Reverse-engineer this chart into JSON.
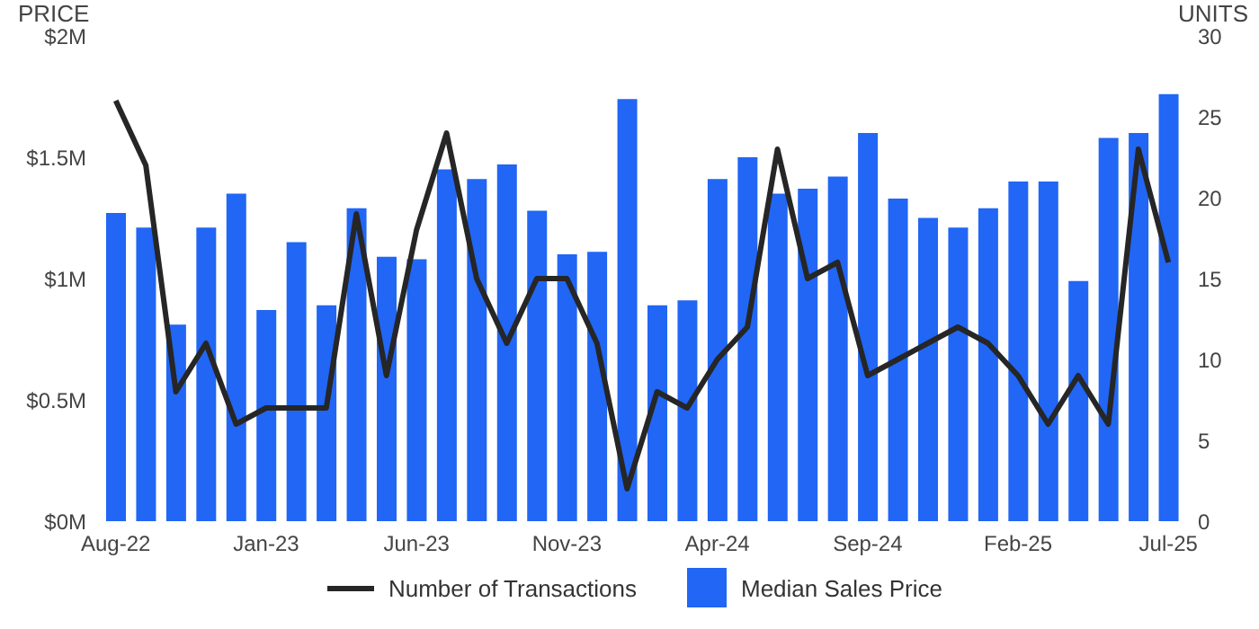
{
  "chart_data": {
    "type": "bar",
    "ylabel": "PRICE",
    "y2label": "UNITS",
    "categories": [
      "Aug-22",
      null,
      null,
      null,
      null,
      "Jan-23",
      null,
      null,
      null,
      null,
      "Jun-23",
      null,
      null,
      null,
      null,
      "Nov-23",
      null,
      null,
      null,
      null,
      "Apr-24",
      null,
      null,
      null,
      null,
      "Sep-24",
      null,
      null,
      null,
      null,
      "Feb-25",
      null,
      null,
      null,
      null,
      "Jul-25"
    ],
    "series": [
      {
        "name": "Number of Transactions",
        "type": "line",
        "axis": "y2",
        "color": "#262626",
        "values": [
          26,
          22,
          8,
          11,
          6,
          7,
          7,
          7,
          19,
          9,
          18,
          24,
          15,
          11,
          15,
          15,
          11,
          2,
          8,
          7,
          10,
          12,
          23,
          15,
          16,
          9,
          10,
          11,
          12,
          11,
          9,
          6,
          9,
          6,
          23,
          16
        ]
      },
      {
        "name": "Median Sales Price",
        "color": "#2166f5",
        "values": [
          1270000,
          1210000,
          810000,
          1210000,
          1350000,
          870000,
          1150000,
          890000,
          1290000,
          1090000,
          1080000,
          1450000,
          1410000,
          1470000,
          1280000,
          1100000,
          1110000,
          1740000,
          890000,
          910000,
          1410000,
          1500000,
          1350000,
          1370000,
          1420000,
          1600000,
          1330000,
          1250000,
          1210000,
          1290000,
          1400000,
          1400000,
          990000,
          1580000,
          1600000,
          1760000
        ]
      }
    ],
    "ylim": [
      0,
      2000000
    ],
    "yticks": [
      {
        "value": 0,
        "label": "$0M"
      },
      {
        "value": 500000,
        "label": "$0.5M"
      },
      {
        "value": 1000000,
        "label": "$1M"
      },
      {
        "value": 1500000,
        "label": "$1.5M"
      },
      {
        "value": 2000000,
        "label": "$2M"
      }
    ],
    "y2lim": [
      0,
      30
    ],
    "y2ticks": [
      0,
      5,
      10,
      15,
      20,
      25,
      30
    ],
    "grid": false,
    "legend": "bottom",
    "marker": "none",
    "line_style": "solid"
  }
}
